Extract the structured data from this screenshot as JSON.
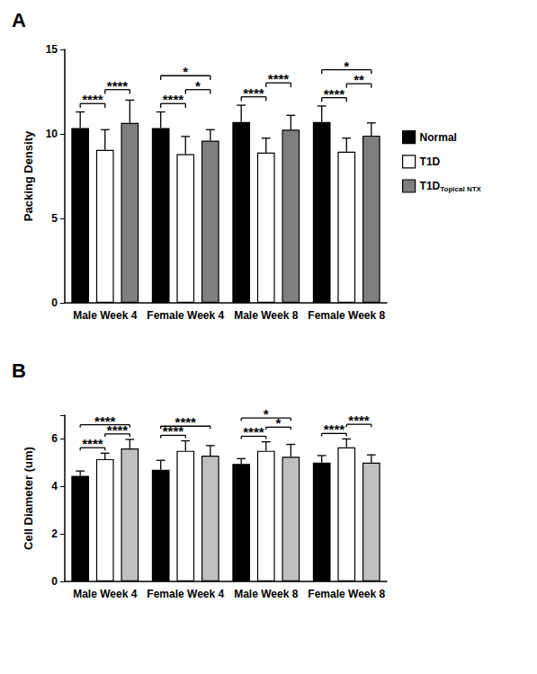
{
  "chart_data": [
    {
      "type": "bar",
      "title": "A",
      "y_label": "Packing Density",
      "categories": [
        "Male Week 4",
        "Female Week 4",
        "Male Week 8",
        "Female Week 8"
      ],
      "series": [
        {
          "name": "Normal",
          "color": "#000000",
          "values": [
            10.35,
            10.35,
            10.7,
            10.7
          ],
          "errors": [
            0.95,
            0.95,
            1.0,
            0.95
          ]
        },
        {
          "name": "T1D",
          "color": "#ffffff",
          "values": [
            9.05,
            8.8,
            8.9,
            8.95
          ],
          "errors": [
            1.2,
            1.05,
            0.85,
            0.8
          ]
        },
        {
          "name": "T1D Topical NTX",
          "color": "#7f7f7f",
          "values": [
            10.65,
            9.6,
            10.25,
            9.9
          ],
          "errors": [
            1.35,
            0.65,
            0.85,
            0.75
          ]
        }
      ],
      "ylim": [
        0,
        15
      ],
      "yticks": [
        0,
        5,
        10,
        15
      ],
      "grid": false,
      "legend": "right",
      "comparisons": [
        {
          "category": "Male Week 4",
          "groups": [
            "Normal",
            "T1D"
          ],
          "label": "****"
        },
        {
          "category": "Male Week 4",
          "groups": [
            "T1D",
            "T1D Topical NTX"
          ],
          "label": "****"
        },
        {
          "category": "Female Week 4",
          "groups": [
            "Normal",
            "T1D"
          ],
          "label": "****"
        },
        {
          "category": "Female Week 4",
          "groups": [
            "T1D",
            "T1D Topical NTX"
          ],
          "label": "*"
        },
        {
          "category": "Female Week 4",
          "groups": [
            "Normal",
            "T1D Topical NTX"
          ],
          "label": "*"
        },
        {
          "category": "Male Week 8",
          "groups": [
            "Normal",
            "T1D"
          ],
          "label": "****"
        },
        {
          "category": "Male Week 8",
          "groups": [
            "T1D",
            "T1D Topical NTX"
          ],
          "label": "****"
        },
        {
          "category": "Female Week 8",
          "groups": [
            "Normal",
            "T1D"
          ],
          "label": "****"
        },
        {
          "category": "Female Week 8",
          "groups": [
            "T1D",
            "T1D Topical NTX"
          ],
          "label": "**"
        },
        {
          "category": "Female Week 8",
          "groups": [
            "Normal",
            "T1D Topical NTX"
          ],
          "label": "*"
        }
      ]
    },
    {
      "type": "bar",
      "title": "B",
      "y_label": "Cell Diameter (um)",
      "categories": [
        "Male Week 4",
        "Female Week 4",
        "Male Week 8",
        "Female Week 8"
      ],
      "series": [
        {
          "name": "Normal",
          "color": "#000000",
          "values": [
            4.45,
            4.7,
            4.95,
            5.0
          ],
          "errors": [
            0.2,
            0.4,
            0.22,
            0.3
          ]
        },
        {
          "name": "T1D",
          "color": "#ffffff",
          "values": [
            5.15,
            5.5,
            5.5,
            5.65
          ],
          "errors": [
            0.25,
            0.42,
            0.38,
            0.35
          ]
        },
        {
          "name": "T1D Topical NTX",
          "color": "#c0c0c0",
          "values": [
            5.6,
            5.3,
            5.25,
            5.0
          ],
          "errors": [
            0.38,
            0.42,
            0.52,
            0.33
          ]
        }
      ],
      "ylim": [
        0,
        7
      ],
      "yticks": [
        0,
        2,
        4,
        6
      ],
      "grid": false,
      "comparisons": [
        {
          "category": "Male Week 4",
          "groups": [
            "Normal",
            "T1D"
          ],
          "label": "****"
        },
        {
          "category": "Male Week 4",
          "groups": [
            "T1D",
            "T1D Topical NTX"
          ],
          "label": "****"
        },
        {
          "category": "Male Week 4",
          "groups": [
            "Normal",
            "T1D Topical NTX"
          ],
          "label": "****"
        },
        {
          "category": "Female Week 4",
          "groups": [
            "Normal",
            "T1D"
          ],
          "label": "****"
        },
        {
          "category": "Female Week 4",
          "groups": [
            "Normal",
            "T1D Topical NTX"
          ],
          "label": "****"
        },
        {
          "category": "Male Week 8",
          "groups": [
            "Normal",
            "T1D"
          ],
          "label": "****"
        },
        {
          "category": "Male Week 8",
          "groups": [
            "T1D",
            "T1D Topical NTX"
          ],
          "label": "*"
        },
        {
          "category": "Male Week 8",
          "groups": [
            "Normal",
            "T1D Topical NTX"
          ],
          "label": "*"
        },
        {
          "category": "Female Week 8",
          "groups": [
            "Normal",
            "T1D"
          ],
          "label": "****"
        },
        {
          "category": "Female Week 8",
          "groups": [
            "T1D",
            "T1D Topical NTX"
          ],
          "label": "****"
        }
      ]
    }
  ]
}
